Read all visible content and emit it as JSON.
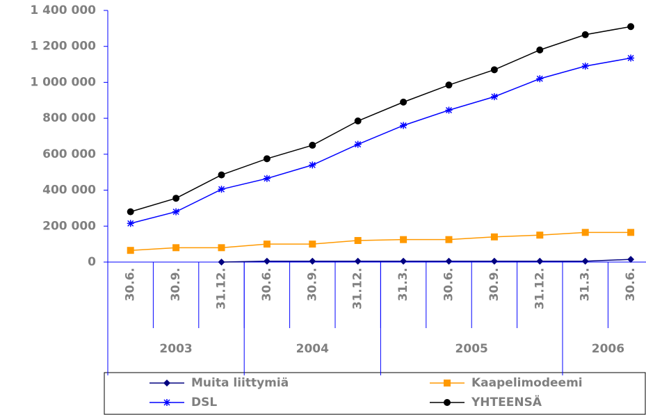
{
  "chart_data": {
    "type": "line",
    "categories": [
      "30.6.",
      "30.9.",
      "31.12.",
      "30.6.",
      "30.9.",
      "31.12.",
      "31.3.",
      "30.6.",
      "30.9.",
      "31.12.",
      "31.3.",
      "30.6."
    ],
    "year_groups": [
      {
        "label": "2003",
        "span": 3
      },
      {
        "label": "2004",
        "span": 3
      },
      {
        "label": "2005",
        "span": 4
      },
      {
        "label": "2006",
        "span": 2
      }
    ],
    "series": [
      {
        "name": "Muita liittymiä",
        "color": "#000080",
        "marker": "diamond",
        "values": [
          null,
          null,
          0,
          5000,
          5000,
          5000,
          5000,
          5000,
          5000,
          5000,
          5000,
          15000
        ]
      },
      {
        "name": "Kaapelimodeemi",
        "color": "#ff9900",
        "marker": "square",
        "values": [
          65000,
          80000,
          80000,
          100000,
          100000,
          120000,
          125000,
          125000,
          140000,
          150000,
          165000,
          165000
        ]
      },
      {
        "name": "DSL",
        "color": "#0000ff",
        "marker": "asterisk",
        "values": [
          215000,
          280000,
          405000,
          465000,
          540000,
          655000,
          760000,
          845000,
          920000,
          1020000,
          1090000,
          1135000
        ]
      },
      {
        "name": "YHTEENSÄ",
        "color": "#000000",
        "marker": "circle",
        "values": [
          280000,
          355000,
          485000,
          575000,
          650000,
          785000,
          890000,
          985000,
          1070000,
          1180000,
          1265000,
          1310000
        ]
      }
    ],
    "ylim": [
      0,
      1400000
    ],
    "yticks": [
      0,
      {
        "value": 200000,
        "label": "200 000"
      },
      {
        "value": 400000,
        "label": "400 000"
      },
      {
        "value": 600000,
        "label": "600 000"
      },
      {
        "value": 800000,
        "label": "800 000"
      },
      {
        "value": 1000000,
        "label": "1 000 000"
      },
      {
        "value": 1200000,
        "label": "1 200 000"
      },
      {
        "value": 1400000,
        "label": "1 400 000"
      }
    ],
    "grid": false,
    "legend": "bottom"
  }
}
